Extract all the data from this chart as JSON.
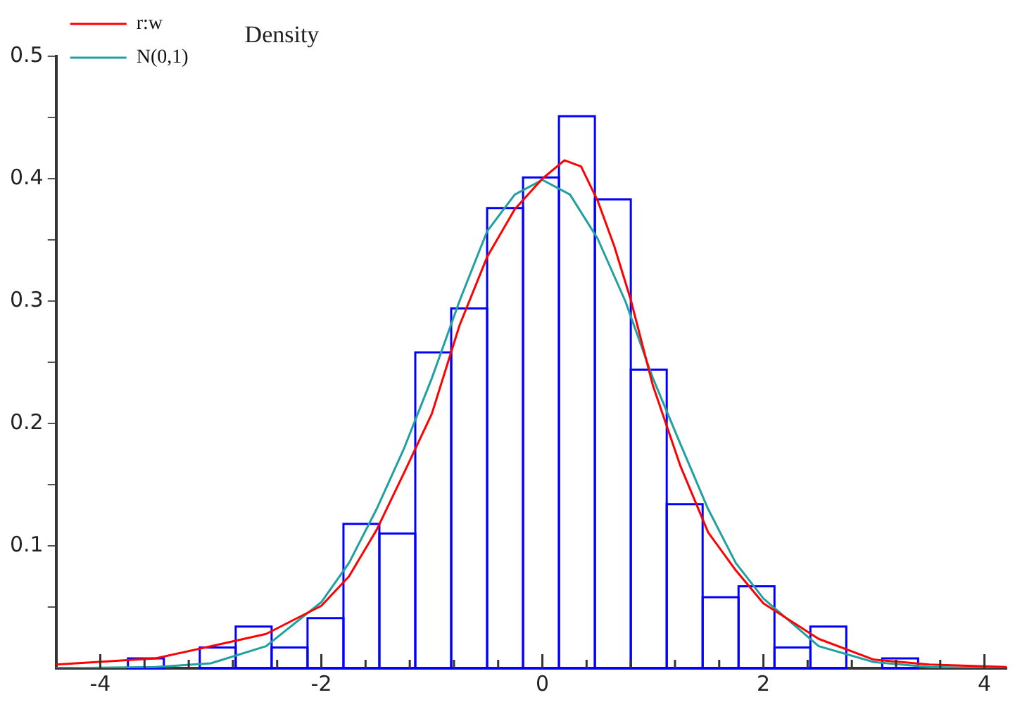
{
  "chart_data": {
    "type": "histogram",
    "ylabel": "Density",
    "color": "#0000ff",
    "bins": [
      -3.75,
      -3.425,
      -3.1,
      -2.775,
      -2.45,
      -2.125,
      -1.8,
      -1.475,
      -1.15,
      -0.825,
      -0.5,
      -0.175,
      0.15,
      0.475,
      0.8,
      1.125,
      1.45,
      1.775,
      2.1,
      2.425,
      2.75,
      3.075,
      3.4
    ],
    "values": [
      0.008,
      0,
      0.017,
      0.034,
      0.017,
      0.041,
      0.118,
      0.11,
      0.258,
      0.294,
      0.376,
      0.401,
      0.451,
      0.383,
      0.244,
      0.134,
      0.058,
      0.067,
      0.017,
      0.034,
      0,
      0.008
    ],
    "series": [
      {
        "type": "line",
        "name": "r:w",
        "color": "#ff0000",
        "x": [
          -4.4,
          -3.5,
          -3,
          -2.5,
          -2,
          -1.75,
          -1.5,
          -1.25,
          -1,
          -0.75,
          -0.5,
          -0.25,
          0,
          0.2,
          0.35,
          0.5,
          0.65,
          0.8,
          1,
          1.25,
          1.5,
          1.75,
          2,
          2.5,
          3,
          3.5,
          4.2
        ],
        "values": [
          0.003,
          0.008,
          0.018,
          0.028,
          0.051,
          0.075,
          0.113,
          0.16,
          0.208,
          0.28,
          0.336,
          0.375,
          0.4,
          0.415,
          0.41,
          0.382,
          0.345,
          0.301,
          0.231,
          0.165,
          0.111,
          0.08,
          0.053,
          0.024,
          0.007,
          0.003,
          0.001
        ]
      },
      {
        "type": "line",
        "name": "N(0,1)",
        "color": "#20a0a0",
        "x": [
          -4.4,
          -3.5,
          -3,
          -2.5,
          -2,
          -1.75,
          -1.5,
          -1.25,
          -1,
          -0.75,
          -0.5,
          -0.25,
          0,
          0.25,
          0.5,
          0.75,
          1,
          1.25,
          1.5,
          1.75,
          2,
          2.5,
          3,
          3.5,
          4.2
        ],
        "values": [
          0,
          0.001,
          0.004,
          0.018,
          0.054,
          0.086,
          0.13,
          0.18,
          0.237,
          0.3,
          0.357,
          0.387,
          0.399,
          0.387,
          0.351,
          0.3,
          0.237,
          0.183,
          0.13,
          0.086,
          0.057,
          0.018,
          0.005,
          0.001,
          0
        ]
      }
    ],
    "xlim": [
      -4.4,
      4.2
    ],
    "xticks": [
      -4,
      {
        "value": -3.6,
        "label": null
      },
      {
        "value": -3.2,
        "label": null
      },
      {
        "value": -2.8,
        "label": null
      },
      {
        "value": -2.4,
        "label": null
      },
      -2,
      {
        "value": -1.6,
        "label": null
      },
      {
        "value": -1.2,
        "label": null
      },
      {
        "value": -0.8,
        "label": null
      },
      {
        "value": -0.4,
        "label": null
      },
      0,
      {
        "value": 0.4,
        "label": null
      },
      {
        "value": 0.8,
        "label": null
      },
      {
        "value": 1.2,
        "label": null
      },
      {
        "value": 1.6,
        "label": null
      },
      2,
      {
        "value": 2.4,
        "label": null
      },
      {
        "value": 2.8,
        "label": null
      },
      {
        "value": 3.2,
        "label": null
      },
      {
        "value": 3.6,
        "label": null
      },
      4
    ],
    "ylim": [
      0,
      0.5
    ],
    "yticks": [
      {
        "value": 0.05,
        "label": null
      },
      0.1,
      {
        "value": 0.15,
        "label": null
      },
      0.2,
      {
        "value": 0.25,
        "label": null
      },
      0.3,
      {
        "value": 0.35,
        "label": null
      },
      0.4,
      {
        "value": 0.45,
        "label": null
      },
      0.5
    ],
    "legend": "top left",
    "grid": false
  }
}
